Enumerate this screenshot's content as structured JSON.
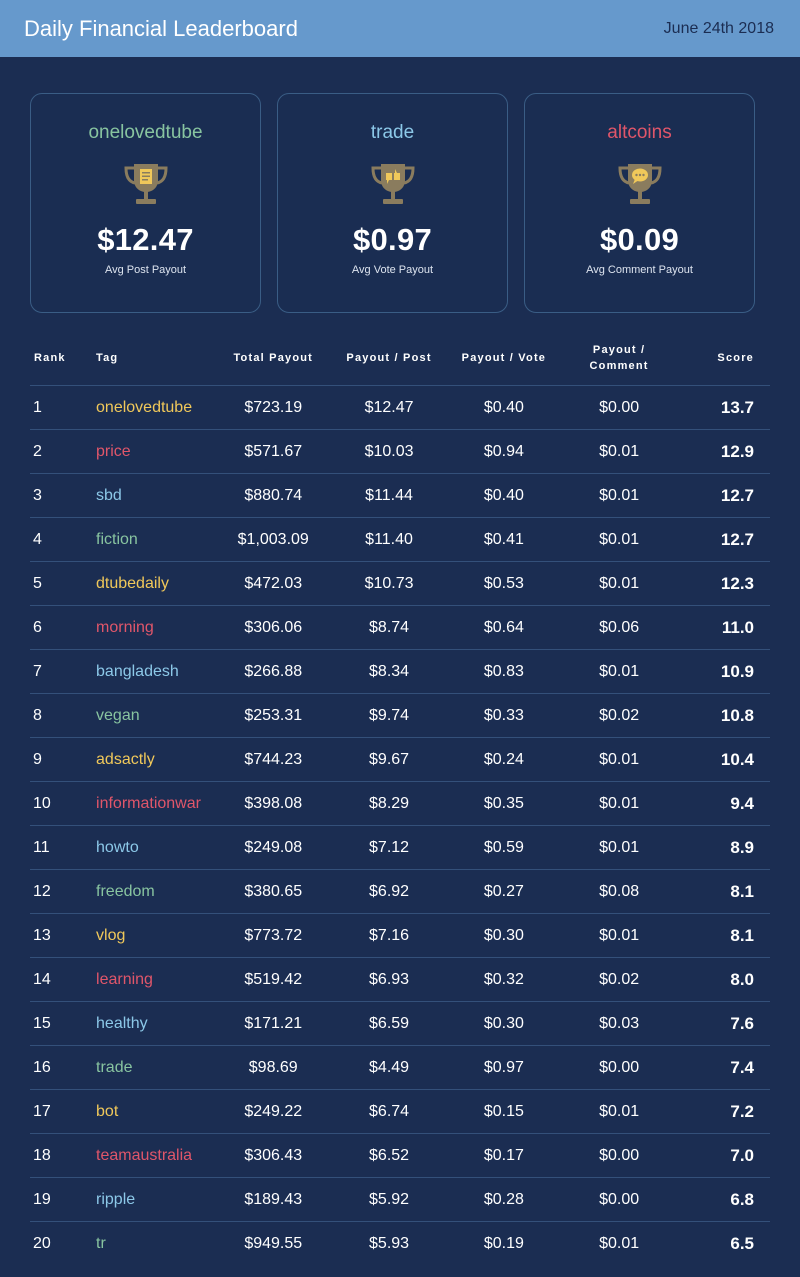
{
  "header": {
    "title": "Daily Financial Leaderboard",
    "date": "June 24th 2018"
  },
  "colors": {
    "background": "#1b2d52",
    "header": "#6699cc",
    "yellow": "#f0c85a",
    "red": "#e0566a",
    "blue": "#8cc8e8",
    "green": "#88c4a0",
    "trophy": "#8a7c5e"
  },
  "cards": [
    {
      "tag": "onelovedtube",
      "color": "#88c4a0",
      "icon": "document-icon",
      "amount": "$12.47",
      "label": "Avg Post Payout"
    },
    {
      "tag": "trade",
      "color": "#8cc8e8",
      "icon": "thumbs-icon",
      "amount": "$0.97",
      "label": "Avg Vote Payout"
    },
    {
      "tag": "altcoins",
      "color": "#e0566a",
      "icon": "comment-icon",
      "amount": "$0.09",
      "label": "Avg Comment Payout"
    }
  ],
  "table": {
    "headers": {
      "rank": "Rank",
      "tag": "Tag",
      "total": "Total Payout",
      "post": "Payout / Post",
      "vote": "Payout / Vote",
      "comment_1": "Payout /",
      "comment_2": "Comment",
      "score": "Score"
    },
    "rows": [
      {
        "rank": "1",
        "tag": "onelovedtube",
        "color": "#f0c85a",
        "total": "$723.19",
        "post": "$12.47",
        "vote": "$0.40",
        "comment": "$0.00",
        "score": "13.7"
      },
      {
        "rank": "2",
        "tag": "price",
        "color": "#e0566a",
        "total": "$571.67",
        "post": "$10.03",
        "vote": "$0.94",
        "comment": "$0.01",
        "score": "12.9"
      },
      {
        "rank": "3",
        "tag": "sbd",
        "color": "#8cc8e8",
        "total": "$880.74",
        "post": "$11.44",
        "vote": "$0.40",
        "comment": "$0.01",
        "score": "12.7"
      },
      {
        "rank": "4",
        "tag": "fiction",
        "color": "#88c4a0",
        "total": "$1,003.09",
        "post": "$11.40",
        "vote": "$0.41",
        "comment": "$0.01",
        "score": "12.7"
      },
      {
        "rank": "5",
        "tag": "dtubedaily",
        "color": "#f0c85a",
        "total": "$472.03",
        "post": "$10.73",
        "vote": "$0.53",
        "comment": "$0.01",
        "score": "12.3"
      },
      {
        "rank": "6",
        "tag": "morning",
        "color": "#e0566a",
        "total": "$306.06",
        "post": "$8.74",
        "vote": "$0.64",
        "comment": "$0.06",
        "score": "11.0"
      },
      {
        "rank": "7",
        "tag": "bangladesh",
        "color": "#8cc8e8",
        "total": "$266.88",
        "post": "$8.34",
        "vote": "$0.83",
        "comment": "$0.01",
        "score": "10.9"
      },
      {
        "rank": "8",
        "tag": "vegan",
        "color": "#88c4a0",
        "total": "$253.31",
        "post": "$9.74",
        "vote": "$0.33",
        "comment": "$0.02",
        "score": "10.8"
      },
      {
        "rank": "9",
        "tag": "adsactly",
        "color": "#f0c85a",
        "total": "$744.23",
        "post": "$9.67",
        "vote": "$0.24",
        "comment": "$0.01",
        "score": "10.4"
      },
      {
        "rank": "10",
        "tag": "informationwar",
        "color": "#e0566a",
        "total": "$398.08",
        "post": "$8.29",
        "vote": "$0.35",
        "comment": "$0.01",
        "score": "9.4"
      },
      {
        "rank": "11",
        "tag": "howto",
        "color": "#8cc8e8",
        "total": "$249.08",
        "post": "$7.12",
        "vote": "$0.59",
        "comment": "$0.01",
        "score": "8.9"
      },
      {
        "rank": "12",
        "tag": "freedom",
        "color": "#88c4a0",
        "total": "$380.65",
        "post": "$6.92",
        "vote": "$0.27",
        "comment": "$0.08",
        "score": "8.1"
      },
      {
        "rank": "13",
        "tag": "vlog",
        "color": "#f0c85a",
        "total": "$773.72",
        "post": "$7.16",
        "vote": "$0.30",
        "comment": "$0.01",
        "score": "8.1"
      },
      {
        "rank": "14",
        "tag": "learning",
        "color": "#e0566a",
        "total": "$519.42",
        "post": "$6.93",
        "vote": "$0.32",
        "comment": "$0.02",
        "score": "8.0"
      },
      {
        "rank": "15",
        "tag": "healthy",
        "color": "#8cc8e8",
        "total": "$171.21",
        "post": "$6.59",
        "vote": "$0.30",
        "comment": "$0.03",
        "score": "7.6"
      },
      {
        "rank": "16",
        "tag": "trade",
        "color": "#88c4a0",
        "total": "$98.69",
        "post": "$4.49",
        "vote": "$0.97",
        "comment": "$0.00",
        "score": "7.4"
      },
      {
        "rank": "17",
        "tag": "bot",
        "color": "#f0c85a",
        "total": "$249.22",
        "post": "$6.74",
        "vote": "$0.15",
        "comment": "$0.01",
        "score": "7.2"
      },
      {
        "rank": "18",
        "tag": "teamaustralia",
        "color": "#e0566a",
        "total": "$306.43",
        "post": "$6.52",
        "vote": "$0.17",
        "comment": "$0.00",
        "score": "7.0"
      },
      {
        "rank": "19",
        "tag": "ripple",
        "color": "#8cc8e8",
        "total": "$189.43",
        "post": "$5.92",
        "vote": "$0.28",
        "comment": "$0.00",
        "score": "6.8"
      },
      {
        "rank": "20",
        "tag": "tr",
        "color": "#88c4a0",
        "total": "$949.55",
        "post": "$5.93",
        "vote": "$0.19",
        "comment": "$0.01",
        "score": "6.5"
      }
    ]
  }
}
